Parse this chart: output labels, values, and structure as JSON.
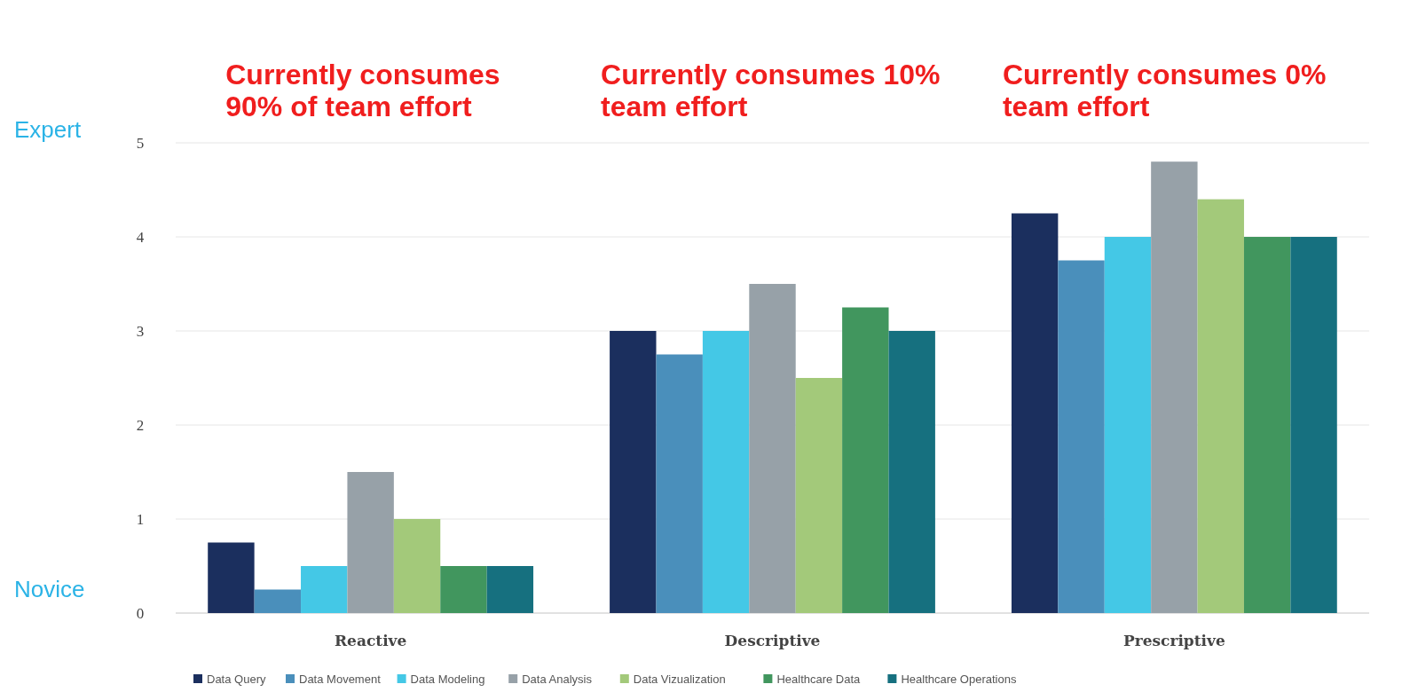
{
  "chart_data": {
    "type": "bar",
    "categories": [
      "Reactive",
      "Descriptive",
      "Prescriptive"
    ],
    "series": [
      {
        "name": "Data Query",
        "color": "#1b2f5e",
        "values": [
          0.75,
          3,
          4.25
        ]
      },
      {
        "name": "Data Movement",
        "color": "#4a8fbb",
        "values": [
          0.25,
          2.75,
          3.75
        ]
      },
      {
        "name": "Data Modeling",
        "color": "#44c8e6",
        "values": [
          0.5,
          3,
          4
        ]
      },
      {
        "name": "Data Analysis",
        "color": "#97a1a8",
        "values": [
          1.5,
          3.5,
          4.8
        ]
      },
      {
        "name": "Data Vizualization",
        "color": "#a3c97a",
        "values": [
          1,
          2.5,
          4.4
        ]
      },
      {
        "name": "Healthcare Data",
        "color": "#41965e",
        "values": [
          0.5,
          3.25,
          4
        ]
      },
      {
        "name": "Healthcare Operations",
        "color": "#16707f",
        "values": [
          0.5,
          3,
          4
        ]
      }
    ],
    "ylim": [
      0,
      5
    ],
    "yticks": [
      0,
      1,
      2,
      3,
      4,
      5
    ],
    "grid": "y",
    "legend": "bottom",
    "annotations": [
      "Currently consumes 90% of team effort",
      "Currently consumes 10% team effort",
      "Currently consumes 0% team effort",
      "Expert",
      "Novice"
    ]
  }
}
